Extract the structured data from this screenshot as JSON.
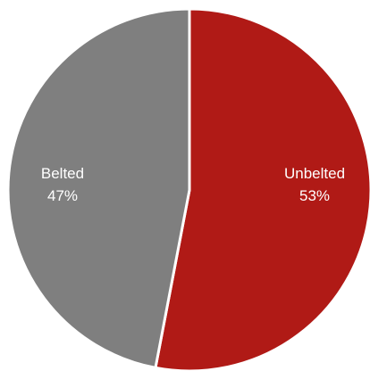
{
  "chart_data": {
    "type": "pie",
    "title": "",
    "slices": [
      {
        "label": "Unbelted",
        "value": 53,
        "value_label": "53%",
        "color": "#b01a16"
      },
      {
        "label": "Belted",
        "value": 47,
        "value_label": "47%",
        "color": "#7f7f7f"
      }
    ],
    "start_angle": "12 o'clock, clockwise",
    "slice_border_color": "#ffffff",
    "legend": "none"
  }
}
